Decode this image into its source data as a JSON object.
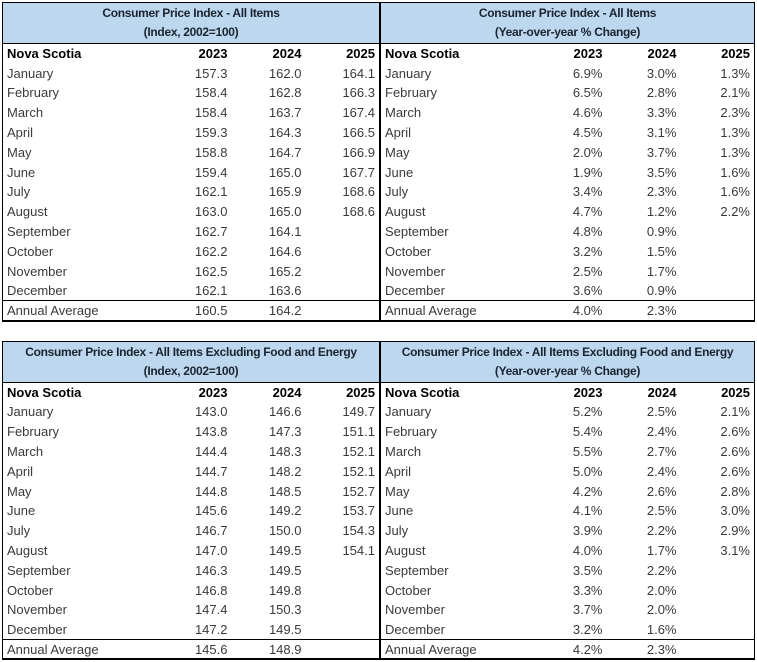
{
  "colors": {
    "header_fill": "#BDD7EE",
    "header_text": "#1b2430",
    "body_text": "#3a3a3a",
    "border": "#000000",
    "background": "#ffffff"
  },
  "tables": [
    {
      "title": "Consumer Price Index - All Items",
      "subtitle": "(Index, 2002=100)",
      "region_label": "Nova Scotia",
      "years": [
        "2023",
        "2024",
        "2025"
      ],
      "rows": [
        {
          "label": "January",
          "values": [
            "157.3",
            "162.0",
            "164.1"
          ]
        },
        {
          "label": "February",
          "values": [
            "158.4",
            "162.8",
            "166.3"
          ]
        },
        {
          "label": "March",
          "values": [
            "158.4",
            "163.7",
            "167.4"
          ]
        },
        {
          "label": "April",
          "values": [
            "159.3",
            "164.3",
            "166.5"
          ]
        },
        {
          "label": "May",
          "values": [
            "158.8",
            "164.7",
            "166.9"
          ]
        },
        {
          "label": "June",
          "values": [
            "159.4",
            "165.0",
            "167.7"
          ]
        },
        {
          "label": "July",
          "values": [
            "162.1",
            "165.9",
            "168.6"
          ]
        },
        {
          "label": "August",
          "values": [
            "163.0",
            "165.0",
            "168.6"
          ]
        },
        {
          "label": "September",
          "values": [
            "162.7",
            "164.1",
            ""
          ]
        },
        {
          "label": "October",
          "values": [
            "162.2",
            "164.6",
            ""
          ]
        },
        {
          "label": "November",
          "values": [
            "162.5",
            "165.2",
            ""
          ]
        },
        {
          "label": "December",
          "values": [
            "162.1",
            "163.6",
            ""
          ]
        },
        {
          "label": "Annual Average",
          "values": [
            "160.5",
            "164.2",
            ""
          ],
          "summary": true
        }
      ]
    },
    {
      "title": "Consumer Price Index - All Items",
      "subtitle": "(Year-over-year % Change)",
      "region_label": "Nova Scotia",
      "years": [
        "2023",
        "2024",
        "2025"
      ],
      "rows": [
        {
          "label": "January",
          "values": [
            "6.9%",
            "3.0%",
            "1.3%"
          ]
        },
        {
          "label": "February",
          "values": [
            "6.5%",
            "2.8%",
            "2.1%"
          ]
        },
        {
          "label": "March",
          "values": [
            "4.6%",
            "3.3%",
            "2.3%"
          ]
        },
        {
          "label": "April",
          "values": [
            "4.5%",
            "3.1%",
            "1.3%"
          ]
        },
        {
          "label": "May",
          "values": [
            "2.0%",
            "3.7%",
            "1.3%"
          ]
        },
        {
          "label": "June",
          "values": [
            "1.9%",
            "3.5%",
            "1.6%"
          ]
        },
        {
          "label": "July",
          "values": [
            "3.4%",
            "2.3%",
            "1.6%"
          ]
        },
        {
          "label": "August",
          "values": [
            "4.7%",
            "1.2%",
            "2.2%"
          ]
        },
        {
          "label": "September",
          "values": [
            "4.8%",
            "0.9%",
            ""
          ]
        },
        {
          "label": "October",
          "values": [
            "3.2%",
            "1.5%",
            ""
          ]
        },
        {
          "label": "November",
          "values": [
            "2.5%",
            "1.7%",
            ""
          ]
        },
        {
          "label": "December",
          "values": [
            "3.6%",
            "0.9%",
            ""
          ]
        },
        {
          "label": "Annual Average",
          "values": [
            "4.0%",
            "2.3%",
            ""
          ],
          "summary": true
        }
      ]
    },
    {
      "title": "Consumer Price Index - All Items Excluding Food and Energy",
      "subtitle": "(Index, 2002=100)",
      "region_label": "Nova Scotia",
      "years": [
        "2023",
        "2024",
        "2025"
      ],
      "rows": [
        {
          "label": "January",
          "values": [
            "143.0",
            "146.6",
            "149.7"
          ]
        },
        {
          "label": "February",
          "values": [
            "143.8",
            "147.3",
            "151.1"
          ]
        },
        {
          "label": "March",
          "values": [
            "144.4",
            "148.3",
            "152.1"
          ]
        },
        {
          "label": "April",
          "values": [
            "144.7",
            "148.2",
            "152.1"
          ]
        },
        {
          "label": "May",
          "values": [
            "144.8",
            "148.5",
            "152.7"
          ]
        },
        {
          "label": "June",
          "values": [
            "145.6",
            "149.2",
            "153.7"
          ]
        },
        {
          "label": "July",
          "values": [
            "146.7",
            "150.0",
            "154.3"
          ]
        },
        {
          "label": "August",
          "values": [
            "147.0",
            "149.5",
            "154.1"
          ]
        },
        {
          "label": "September",
          "values": [
            "146.3",
            "149.5",
            ""
          ]
        },
        {
          "label": "October",
          "values": [
            "146.8",
            "149.8",
            ""
          ]
        },
        {
          "label": "November",
          "values": [
            "147.4",
            "150.3",
            ""
          ]
        },
        {
          "label": "December",
          "values": [
            "147.2",
            "149.5",
            ""
          ]
        },
        {
          "label": "Annual Average",
          "values": [
            "145.6",
            "148.9",
            ""
          ],
          "summary": true
        }
      ]
    },
    {
      "title": "Consumer Price Index - All Items Excluding Food and Energy",
      "subtitle": "(Year-over-year % Change)",
      "region_label": "Nova Scotia",
      "years": [
        "2023",
        "2024",
        "2025"
      ],
      "rows": [
        {
          "label": "January",
          "values": [
            "5.2%",
            "2.5%",
            "2.1%"
          ]
        },
        {
          "label": "February",
          "values": [
            "5.4%",
            "2.4%",
            "2.6%"
          ]
        },
        {
          "label": "March",
          "values": [
            "5.5%",
            "2.7%",
            "2.6%"
          ]
        },
        {
          "label": "April",
          "values": [
            "5.0%",
            "2.4%",
            "2.6%"
          ]
        },
        {
          "label": "May",
          "values": [
            "4.2%",
            "2.6%",
            "2.8%"
          ]
        },
        {
          "label": "June",
          "values": [
            "4.1%",
            "2.5%",
            "3.0%"
          ]
        },
        {
          "label": "July",
          "values": [
            "3.9%",
            "2.2%",
            "2.9%"
          ]
        },
        {
          "label": "August",
          "values": [
            "4.0%",
            "1.7%",
            "3.1%"
          ]
        },
        {
          "label": "September",
          "values": [
            "3.5%",
            "2.2%",
            ""
          ]
        },
        {
          "label": "October",
          "values": [
            "3.3%",
            "2.0%",
            ""
          ]
        },
        {
          "label": "November",
          "values": [
            "3.7%",
            "2.0%",
            ""
          ]
        },
        {
          "label": "December",
          "values": [
            "3.2%",
            "1.6%",
            ""
          ]
        },
        {
          "label": "Annual Average",
          "values": [
            "4.2%",
            "2.3%",
            ""
          ],
          "summary": true
        }
      ]
    }
  ]
}
